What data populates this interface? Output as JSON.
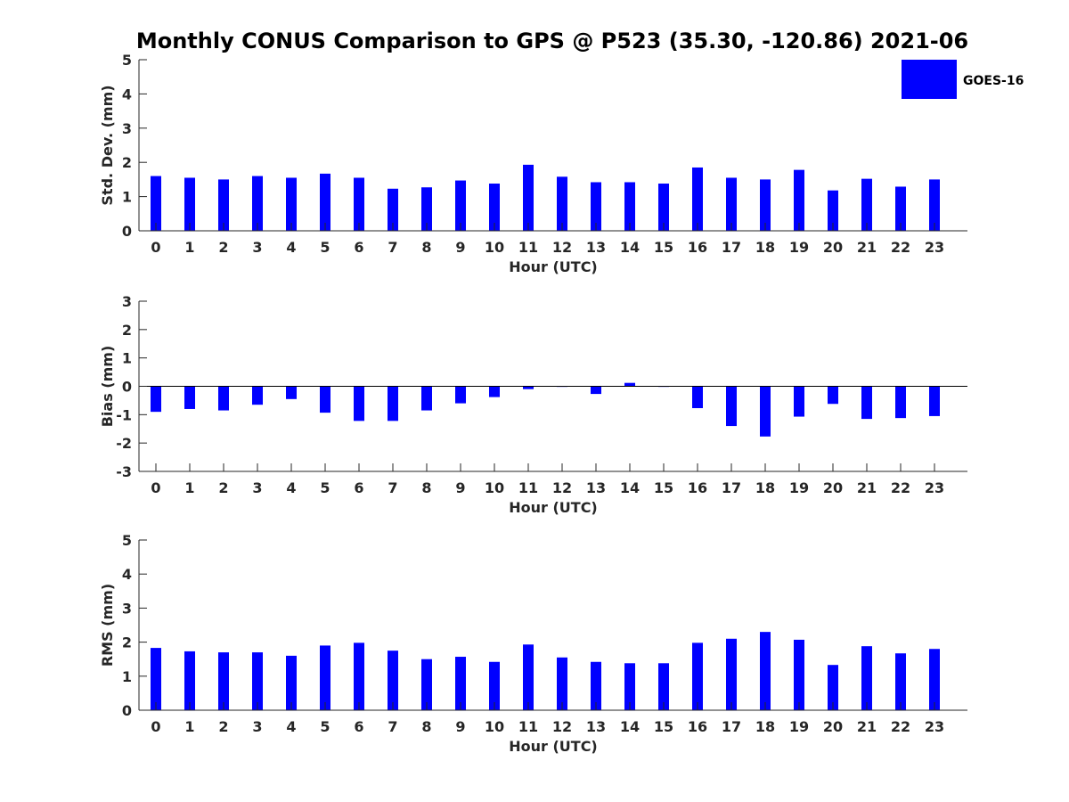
{
  "title": "Monthly CONUS Comparison to GPS @ P523 (35.30, -120.86) 2021-06",
  "legend": {
    "label": "GOES-16",
    "color": "#0000ff",
    "placement": "top-right"
  },
  "chart_data": [
    {
      "type": "bar",
      "ylabel": "Std. Dev. (mm)",
      "xlabel": "Hour (UTC)",
      "ylim": [
        0,
        5
      ],
      "yticks": [
        "0",
        "1",
        "2",
        "3",
        "4",
        "5"
      ],
      "categories": [
        "0",
        "1",
        "2",
        "3",
        "4",
        "5",
        "6",
        "7",
        "8",
        "9",
        "10",
        "11",
        "12",
        "13",
        "14",
        "15",
        "16",
        "17",
        "18",
        "19",
        "20",
        "21",
        "22",
        "23"
      ],
      "series": [
        {
          "name": "GOES-16",
          "values": [
            1.6,
            1.55,
            1.5,
            1.6,
            1.55,
            1.67,
            1.55,
            1.23,
            1.27,
            1.47,
            1.38,
            1.93,
            1.58,
            1.42,
            1.42,
            1.38,
            1.85,
            1.55,
            1.5,
            1.78,
            1.18,
            1.52,
            1.29,
            1.5
          ]
        }
      ],
      "grid": false
    },
    {
      "type": "bar",
      "ylabel": "Bias (mm)",
      "xlabel": "Hour (UTC)",
      "ylim": [
        -3,
        3
      ],
      "yticks": [
        "-3",
        "-2",
        "-1",
        "0",
        "1",
        "2",
        "3"
      ],
      "categories": [
        "0",
        "1",
        "2",
        "3",
        "4",
        "5",
        "6",
        "7",
        "8",
        "9",
        "10",
        "11",
        "12",
        "13",
        "14",
        "15",
        "16",
        "17",
        "18",
        "19",
        "20",
        "21",
        "22",
        "23"
      ],
      "series": [
        {
          "name": "GOES-16",
          "values": [
            -0.9,
            -0.8,
            -0.85,
            -0.65,
            -0.45,
            -0.93,
            -1.22,
            -1.22,
            -0.85,
            -0.6,
            -0.38,
            -0.1,
            -0.02,
            -0.27,
            0.12,
            -0.02,
            -0.77,
            -1.4,
            -1.77,
            -1.07,
            -0.62,
            -1.15,
            -1.12,
            -1.05
          ]
        }
      ],
      "grid": false
    },
    {
      "type": "bar",
      "ylabel": "RMS (mm)",
      "xlabel": "Hour (UTC)",
      "ylim": [
        0,
        5
      ],
      "yticks": [
        "0",
        "1",
        "2",
        "3",
        "4",
        "5"
      ],
      "categories": [
        "0",
        "1",
        "2",
        "3",
        "4",
        "5",
        "6",
        "7",
        "8",
        "9",
        "10",
        "11",
        "12",
        "13",
        "14",
        "15",
        "16",
        "17",
        "18",
        "19",
        "20",
        "21",
        "22",
        "23"
      ],
      "series": [
        {
          "name": "GOES-16",
          "values": [
            1.83,
            1.73,
            1.7,
            1.7,
            1.6,
            1.9,
            1.98,
            1.75,
            1.5,
            1.57,
            1.42,
            1.93,
            1.55,
            1.42,
            1.38,
            1.38,
            1.98,
            2.1,
            2.3,
            2.07,
            1.33,
            1.88,
            1.67,
            1.8
          ]
        }
      ],
      "grid": false
    }
  ]
}
